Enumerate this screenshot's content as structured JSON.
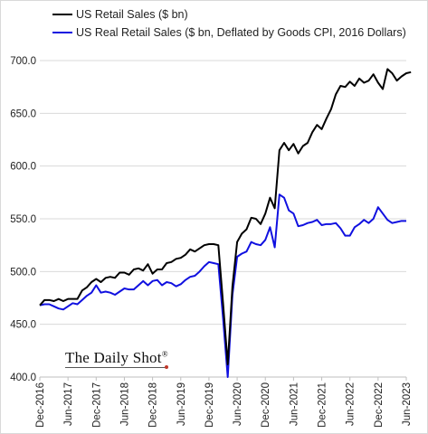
{
  "colors": {
    "nominal": "#000000",
    "real": "#1010e0",
    "grid": "#d9d9d9",
    "background": "#ffffff"
  },
  "brand": {
    "name": "The Daily Shot",
    "mark": "®"
  },
  "chart_data": {
    "type": "line",
    "legend_position": "top-left",
    "grid": "horizontal",
    "ylim": [
      400,
      700
    ],
    "yticks": [
      "400.0",
      "450.0",
      "500.0",
      "550.0",
      "600.0",
      "650.0",
      "700.0"
    ],
    "ytick_values": [
      400,
      450,
      500,
      550,
      600,
      650,
      700
    ],
    "xlim": [
      "2016-12",
      "2023-06"
    ],
    "xticks": [
      {
        "label": "Dec-2016",
        "date": "2016-12"
      },
      {
        "label": "Jun-2017",
        "date": "2017-06"
      },
      {
        "label": "Dec-2017",
        "date": "2017-12"
      },
      {
        "label": "Jun-2018",
        "date": "2018-06"
      },
      {
        "label": "Dec-2018",
        "date": "2018-12"
      },
      {
        "label": "Jun-2019",
        "date": "2019-06"
      },
      {
        "label": "Dec-2019",
        "date": "2019-12"
      },
      {
        "label": "Jun-2020",
        "date": "2020-06"
      },
      {
        "label": "Dec-2020",
        "date": "2020-12"
      },
      {
        "label": "Jun-2021",
        "date": "2021-06"
      },
      {
        "label": "Dec-2021",
        "date": "2021-12"
      },
      {
        "label": "Jun-2022",
        "date": "2022-06"
      },
      {
        "label": "Dec-2022",
        "date": "2022-12"
      },
      {
        "label": "Jun-2023",
        "date": "2023-06"
      }
    ],
    "series": [
      {
        "name": "US Retail Sales ($ bn)",
        "color": "#000000",
        "points": [
          [
            "2016-12",
            468
          ],
          [
            "2017-01",
            473
          ],
          [
            "2017-02",
            473
          ],
          [
            "2017-03",
            472
          ],
          [
            "2017-04",
            474
          ],
          [
            "2017-05",
            472
          ],
          [
            "2017-06",
            474
          ],
          [
            "2017-07",
            474
          ],
          [
            "2017-08",
            474
          ],
          [
            "2017-09",
            482
          ],
          [
            "2017-10",
            485
          ],
          [
            "2017-11",
            490
          ],
          [
            "2017-12",
            493
          ],
          [
            "2018-01",
            490
          ],
          [
            "2018-02",
            494
          ],
          [
            "2018-03",
            495
          ],
          [
            "2018-04",
            494
          ],
          [
            "2018-05",
            499
          ],
          [
            "2018-06",
            499
          ],
          [
            "2018-07",
            497
          ],
          [
            "2018-08",
            502
          ],
          [
            "2018-09",
            503
          ],
          [
            "2018-10",
            501
          ],
          [
            "2018-11",
            507
          ],
          [
            "2018-12",
            498
          ],
          [
            "2019-01",
            502
          ],
          [
            "2019-02",
            502
          ],
          [
            "2019-03",
            508
          ],
          [
            "2019-04",
            509
          ],
          [
            "2019-05",
            512
          ],
          [
            "2019-06",
            513
          ],
          [
            "2019-07",
            516
          ],
          [
            "2019-08",
            521
          ],
          [
            "2019-09",
            519
          ],
          [
            "2019-10",
            522
          ],
          [
            "2019-11",
            525
          ],
          [
            "2019-12",
            526
          ],
          [
            "2020-01",
            526
          ],
          [
            "2020-02",
            525
          ],
          [
            "2020-03",
            470
          ],
          [
            "2020-04",
            412
          ],
          [
            "2020-05",
            486
          ],
          [
            "2020-06",
            528
          ],
          [
            "2020-07",
            536
          ],
          [
            "2020-08",
            540
          ],
          [
            "2020-09",
            551
          ],
          [
            "2020-10",
            550
          ],
          [
            "2020-11",
            545
          ],
          [
            "2020-12",
            555
          ],
          [
            "2021-01",
            570
          ],
          [
            "2021-02",
            560
          ],
          [
            "2021-03",
            615
          ],
          [
            "2021-04",
            622
          ],
          [
            "2021-05",
            615
          ],
          [
            "2021-06",
            621
          ],
          [
            "2021-07",
            612
          ],
          [
            "2021-08",
            619
          ],
          [
            "2021-09",
            622
          ],
          [
            "2021-10",
            632
          ],
          [
            "2021-11",
            639
          ],
          [
            "2021-12",
            635
          ],
          [
            "2022-01",
            645
          ],
          [
            "2022-02",
            654
          ],
          [
            "2022-03",
            668
          ],
          [
            "2022-04",
            676
          ],
          [
            "2022-05",
            675
          ],
          [
            "2022-06",
            680
          ],
          [
            "2022-07",
            676
          ],
          [
            "2022-08",
            683
          ],
          [
            "2022-09",
            679
          ],
          [
            "2022-10",
            681
          ],
          [
            "2022-11",
            687
          ],
          [
            "2022-12",
            679
          ],
          [
            "2023-01",
            673
          ],
          [
            "2023-02",
            692
          ],
          [
            "2023-03",
            688
          ],
          [
            "2023-04",
            681
          ],
          [
            "2023-05",
            685
          ],
          [
            "2023-06",
            688
          ],
          [
            "2023-07",
            689
          ]
        ]
      },
      {
        "name": "US Real Retail Sales ($ bn, Deflated by Goods CPI, 2016 Dollars)",
        "color": "#1010e0",
        "points": [
          [
            "2016-12",
            468
          ],
          [
            "2017-01",
            469
          ],
          [
            "2017-02",
            469
          ],
          [
            "2017-03",
            467
          ],
          [
            "2017-04",
            465
          ],
          [
            "2017-05",
            464
          ],
          [
            "2017-06",
            467
          ],
          [
            "2017-07",
            470
          ],
          [
            "2017-08",
            469
          ],
          [
            "2017-09",
            473
          ],
          [
            "2017-10",
            477
          ],
          [
            "2017-11",
            480
          ],
          [
            "2017-12",
            487
          ],
          [
            "2018-01",
            480
          ],
          [
            "2018-02",
            481
          ],
          [
            "2018-03",
            480
          ],
          [
            "2018-04",
            478
          ],
          [
            "2018-05",
            481
          ],
          [
            "2018-06",
            484
          ],
          [
            "2018-07",
            483
          ],
          [
            "2018-08",
            483
          ],
          [
            "2018-09",
            487
          ],
          [
            "2018-10",
            491
          ],
          [
            "2018-11",
            487
          ],
          [
            "2018-12",
            491
          ],
          [
            "2019-01",
            492
          ],
          [
            "2019-02",
            487
          ],
          [
            "2019-03",
            490
          ],
          [
            "2019-04",
            489
          ],
          [
            "2019-05",
            486
          ],
          [
            "2019-06",
            488
          ],
          [
            "2019-07",
            492
          ],
          [
            "2019-08",
            495
          ],
          [
            "2019-09",
            496
          ],
          [
            "2019-10",
            500
          ],
          [
            "2019-11",
            505
          ],
          [
            "2019-12",
            509
          ],
          [
            "2020-01",
            508
          ],
          [
            "2020-02",
            507
          ],
          [
            "2020-03",
            456
          ],
          [
            "2020-04",
            400
          ],
          [
            "2020-05",
            478
          ],
          [
            "2020-06",
            514
          ],
          [
            "2020-07",
            517
          ],
          [
            "2020-08",
            519
          ],
          [
            "2020-09",
            528
          ],
          [
            "2020-10",
            526
          ],
          [
            "2020-11",
            525
          ],
          [
            "2020-12",
            530
          ],
          [
            "2021-01",
            542
          ],
          [
            "2021-02",
            523
          ],
          [
            "2021-03",
            573
          ],
          [
            "2021-04",
            570
          ],
          [
            "2021-05",
            558
          ],
          [
            "2021-06",
            555
          ],
          [
            "2021-07",
            543
          ],
          [
            "2021-08",
            544
          ],
          [
            "2021-09",
            546
          ],
          [
            "2021-10",
            547
          ],
          [
            "2021-11",
            549
          ],
          [
            "2021-12",
            544
          ],
          [
            "2022-01",
            545
          ],
          [
            "2022-02",
            545
          ],
          [
            "2022-03",
            546
          ],
          [
            "2022-04",
            541
          ],
          [
            "2022-05",
            534
          ],
          [
            "2022-06",
            534
          ],
          [
            "2022-07",
            542
          ],
          [
            "2022-08",
            545
          ],
          [
            "2022-09",
            549
          ],
          [
            "2022-10",
            546
          ],
          [
            "2022-11",
            550
          ],
          [
            "2022-12",
            561
          ],
          [
            "2023-01",
            555
          ],
          [
            "2023-02",
            549
          ],
          [
            "2023-03",
            546
          ],
          [
            "2023-04",
            547
          ],
          [
            "2023-05",
            548
          ],
          [
            "2023-06",
            548
          ]
        ]
      }
    ]
  }
}
